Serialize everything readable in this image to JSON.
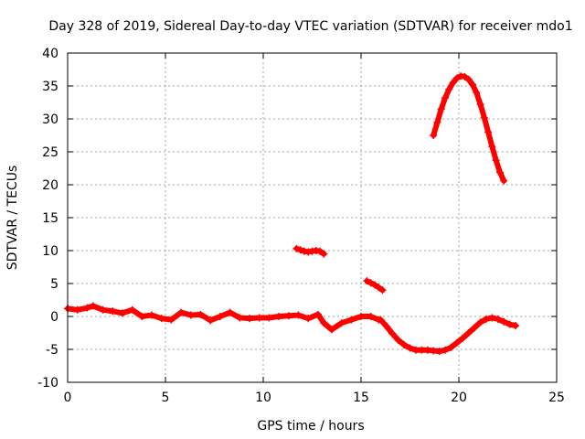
{
  "chart_data": {
    "type": "scatter",
    "title": "Day 328 of 2019, Sidereal Day-to-day VTEC variation (SDTVAR) for receiver mdo1",
    "xlabel": "GPS time / hours",
    "ylabel": "SDTVAR / TECUs",
    "xlim": [
      0,
      25
    ],
    "ylim": [
      -10,
      40
    ],
    "xticks": [
      0,
      5,
      10,
      15,
      20,
      25
    ],
    "yticks": [
      -10,
      -5,
      0,
      5,
      10,
      15,
      20,
      25,
      30,
      35,
      40
    ],
    "grid": true,
    "series": [
      {
        "name": "SDTVAR",
        "color": "#ff0000",
        "marker": "plus",
        "segments": [
          {
            "name": "baseline-0-15h",
            "x": [
              0.0,
              0.5,
              1.0,
              1.3,
              1.8,
              2.3,
              2.8,
              3.3,
              3.8,
              4.3,
              4.8,
              5.3,
              5.8,
              6.3,
              6.8,
              7.3,
              7.8,
              8.3,
              8.8,
              9.3,
              9.8,
              10.3,
              10.8,
              11.3,
              11.8,
              12.3,
              12.8,
              13.1,
              13.5,
              14.0,
              14.5,
              15.0,
              15.5,
              15.9
            ],
            "y": [
              1.2,
              1.0,
              1.3,
              1.6,
              1.0,
              0.8,
              0.5,
              1.0,
              0.0,
              0.2,
              -0.3,
              -0.5,
              0.6,
              0.2,
              0.3,
              -0.6,
              0.0,
              0.6,
              -0.2,
              -0.3,
              -0.2,
              -0.2,
              0.0,
              0.1,
              0.2,
              -0.3,
              0.3,
              -1.0,
              -2.0,
              -1.0,
              -0.5,
              0.0,
              0.0,
              -0.5
            ]
          },
          {
            "name": "dip-and-recovery",
            "x": [
              16.0,
              16.3,
              16.6,
              16.9,
              17.2,
              17.5,
              17.8,
              18.1,
              18.4,
              18.7,
              19.0,
              19.3,
              19.6,
              19.9,
              20.2,
              20.5,
              20.8,
              21.1,
              21.4,
              21.7,
              22.0,
              22.3,
              22.6,
              22.9
            ],
            "y": [
              -0.5,
              -1.5,
              -2.6,
              -3.6,
              -4.3,
              -4.8,
              -5.1,
              -5.1,
              -5.1,
              -5.2,
              -5.3,
              -5.1,
              -4.7,
              -4.0,
              -3.3,
              -2.5,
              -1.7,
              -0.9,
              -0.4,
              -0.2,
              -0.4,
              -0.8,
              -1.2,
              -1.4
            ]
          },
          {
            "name": "arc-19-22h",
            "x": [
              18.7,
              18.9,
              19.1,
              19.3,
              19.5,
              19.7,
              19.9,
              20.1,
              20.3,
              20.5,
              20.7,
              20.9,
              21.1,
              21.3,
              21.5,
              21.7,
              21.9,
              22.1,
              22.3
            ],
            "y": [
              27.5,
              29.5,
              31.5,
              33.2,
              34.5,
              35.5,
              36.2,
              36.5,
              36.4,
              36.0,
              35.2,
              34.0,
              32.2,
              30.2,
              28.0,
              25.8,
              23.7,
              21.9,
              20.6
            ]
          },
          {
            "name": "short-arc-12h",
            "x": [
              11.7,
              11.9,
              12.1,
              12.3,
              12.5,
              12.7,
              12.9,
              13.1
            ],
            "y": [
              10.3,
              10.1,
              9.9,
              9.8,
              9.9,
              10.0,
              9.9,
              9.5
            ]
          },
          {
            "name": "short-arc-15h",
            "x": [
              15.3,
              15.5,
              15.7,
              15.9,
              16.1
            ],
            "y": [
              5.4,
              5.1,
              4.8,
              4.4,
              4.0
            ]
          }
        ]
      }
    ]
  }
}
